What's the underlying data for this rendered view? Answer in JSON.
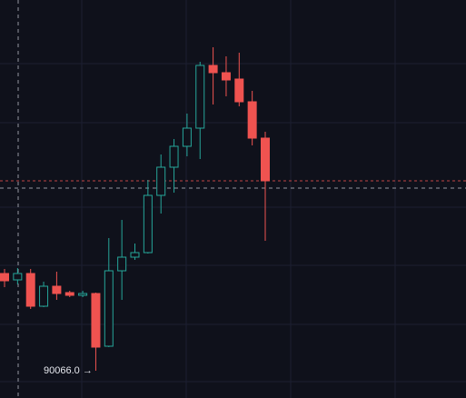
{
  "chart_data": {
    "type": "candlestick",
    "open": [
      90601,
      90566,
      90601,
      90421,
      90531,
      90496,
      90481,
      90491,
      90201,
      90616,
      90691,
      90716,
      91031,
      91186,
      91301,
      91401,
      91746,
      91706,
      91671,
      91546,
      91346
    ],
    "high": [
      90626,
      90631,
      90626,
      90556,
      90611,
      90506,
      90506,
      90496,
      90796,
      90896,
      90766,
      91116,
      91256,
      91341,
      91481,
      91766,
      91846,
      91796,
      91816,
      91606,
      91381
    ],
    "low": [
      90526,
      90541,
      90406,
      90416,
      90456,
      90471,
      90471,
      90066,
      90196,
      90456,
      90676,
      90711,
      90931,
      91046,
      91246,
      91231,
      91531,
      91576,
      91521,
      91306,
      90781
    ],
    "close": [
      90561,
      90601,
      90421,
      90531,
      90491,
      90481,
      90491,
      90196,
      90616,
      90691,
      90716,
      91031,
      91186,
      91301,
      91401,
      91746,
      91706,
      91666,
      91546,
      91346,
      91111
    ],
    "up_color": "#26a69a",
    "down_color": "#ef5350",
    "ylim": [
      89916,
      92106
    ],
    "annotations": [
      {
        "value": 90066,
        "label": "90066.0 →"
      }
    ]
  }
}
